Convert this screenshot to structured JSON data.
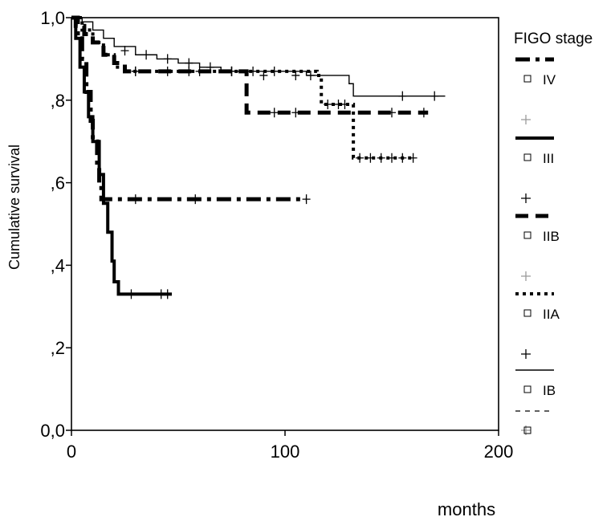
{
  "chart_data": {
    "type": "line",
    "subtype": "kaplan-meier",
    "xlabel": "months",
    "ylabel": "Cumulative  survival",
    "xlim": [
      0,
      200
    ],
    "ylim": [
      0.0,
      1.0
    ],
    "xticks": [
      {
        "v": 0,
        "label": "0"
      },
      {
        "v": 100,
        "label": "100"
      },
      {
        "v": 200,
        "label": "200"
      }
    ],
    "yticks": [
      {
        "v": 0.0,
        "label": "0,0"
      },
      {
        "v": 0.2,
        "label": ",2"
      },
      {
        "v": 0.4,
        "label": ",4"
      },
      {
        "v": 0.6,
        "label": ",6"
      },
      {
        "v": 0.8,
        "label": ",8"
      },
      {
        "v": 1.0,
        "label": "1,0"
      }
    ],
    "grid": false,
    "legend": {
      "title": "FIGO stage",
      "position": "right",
      "entries": [
        {
          "label": "IV",
          "style": "dashdot"
        },
        {
          "label": "III",
          "style": "solid-thick"
        },
        {
          "label": "IIB",
          "style": "dashed"
        },
        {
          "label": "IIA",
          "style": "dotted"
        },
        {
          "label": "IB",
          "style": "solid-thin"
        },
        {
          "label": "",
          "style": "dashed-thin"
        }
      ]
    },
    "series": [
      {
        "style": "dashdot",
        "points": [
          [
            0,
            1.0
          ],
          [
            2,
            0.98
          ],
          [
            3,
            0.95
          ],
          [
            5,
            0.9
          ],
          [
            7,
            0.82
          ],
          [
            9,
            0.75
          ],
          [
            10,
            0.7
          ],
          [
            12,
            0.64
          ],
          [
            13,
            0.6
          ],
          [
            14,
            0.56
          ],
          [
            110,
            0.56
          ]
        ],
        "censored": [
          [
            30,
            0.56
          ],
          [
            58,
            0.56
          ],
          [
            110,
            0.56
          ]
        ]
      },
      {
        "style": "solid-thick",
        "points": [
          [
            0,
            1.0
          ],
          [
            2,
            0.95
          ],
          [
            4,
            0.88
          ],
          [
            6,
            0.82
          ],
          [
            8,
            0.76
          ],
          [
            10,
            0.7
          ],
          [
            13,
            0.62
          ],
          [
            15,
            0.55
          ],
          [
            17,
            0.48
          ],
          [
            19,
            0.41
          ],
          [
            20,
            0.36
          ],
          [
            22,
            0.33
          ],
          [
            47,
            0.33
          ]
        ],
        "censored": [
          [
            28,
            0.33
          ],
          [
            42,
            0.33
          ],
          [
            45,
            0.33
          ]
        ]
      },
      {
        "style": "dashed",
        "points": [
          [
            0,
            1.0
          ],
          [
            3,
            0.98
          ],
          [
            6,
            0.96
          ],
          [
            10,
            0.94
          ],
          [
            15,
            0.91
          ],
          [
            20,
            0.89
          ],
          [
            25,
            0.87
          ],
          [
            80,
            0.87
          ],
          [
            82,
            0.77
          ],
          [
            167,
            0.77
          ]
        ],
        "censored": [
          [
            30,
            0.87
          ],
          [
            45,
            0.87
          ],
          [
            60,
            0.87
          ],
          [
            75,
            0.87
          ],
          [
            95,
            0.77
          ],
          [
            105,
            0.77
          ],
          [
            150,
            0.77
          ],
          [
            165,
            0.77
          ]
        ]
      },
      {
        "style": "dotted",
        "points": [
          [
            0,
            1.0
          ],
          [
            5,
            0.97
          ],
          [
            10,
            0.94
          ],
          [
            15,
            0.91
          ],
          [
            20,
            0.88
          ],
          [
            25,
            0.87
          ],
          [
            115,
            0.86
          ],
          [
            117,
            0.79
          ],
          [
            130,
            0.79
          ],
          [
            132,
            0.66
          ],
          [
            160,
            0.66
          ]
        ],
        "censored": [
          [
            30,
            0.87
          ],
          [
            55,
            0.87
          ],
          [
            75,
            0.87
          ],
          [
            90,
            0.86
          ],
          [
            105,
            0.86
          ],
          [
            112,
            0.86
          ],
          [
            120,
            0.79
          ],
          [
            125,
            0.79
          ],
          [
            128,
            0.79
          ],
          [
            135,
            0.66
          ],
          [
            140,
            0.66
          ],
          [
            145,
            0.66
          ],
          [
            150,
            0.66
          ],
          [
            155,
            0.66
          ],
          [
            160,
            0.66
          ]
        ]
      },
      {
        "style": "solid-thin",
        "points": [
          [
            0,
            1.0
          ],
          [
            5,
            0.99
          ],
          [
            10,
            0.97
          ],
          [
            15,
            0.95
          ],
          [
            20,
            0.93
          ],
          [
            30,
            0.91
          ],
          [
            40,
            0.9
          ],
          [
            50,
            0.89
          ],
          [
            60,
            0.88
          ],
          [
            70,
            0.87
          ],
          [
            100,
            0.87
          ],
          [
            110,
            0.86
          ],
          [
            130,
            0.84
          ],
          [
            132,
            0.81
          ],
          [
            175,
            0.81
          ]
        ],
        "censored": [
          [
            25,
            0.92
          ],
          [
            35,
            0.91
          ],
          [
            45,
            0.9
          ],
          [
            55,
            0.89
          ],
          [
            65,
            0.88
          ],
          [
            75,
            0.87
          ],
          [
            85,
            0.87
          ],
          [
            95,
            0.87
          ],
          [
            155,
            0.81
          ],
          [
            170,
            0.81
          ]
        ]
      }
    ]
  }
}
